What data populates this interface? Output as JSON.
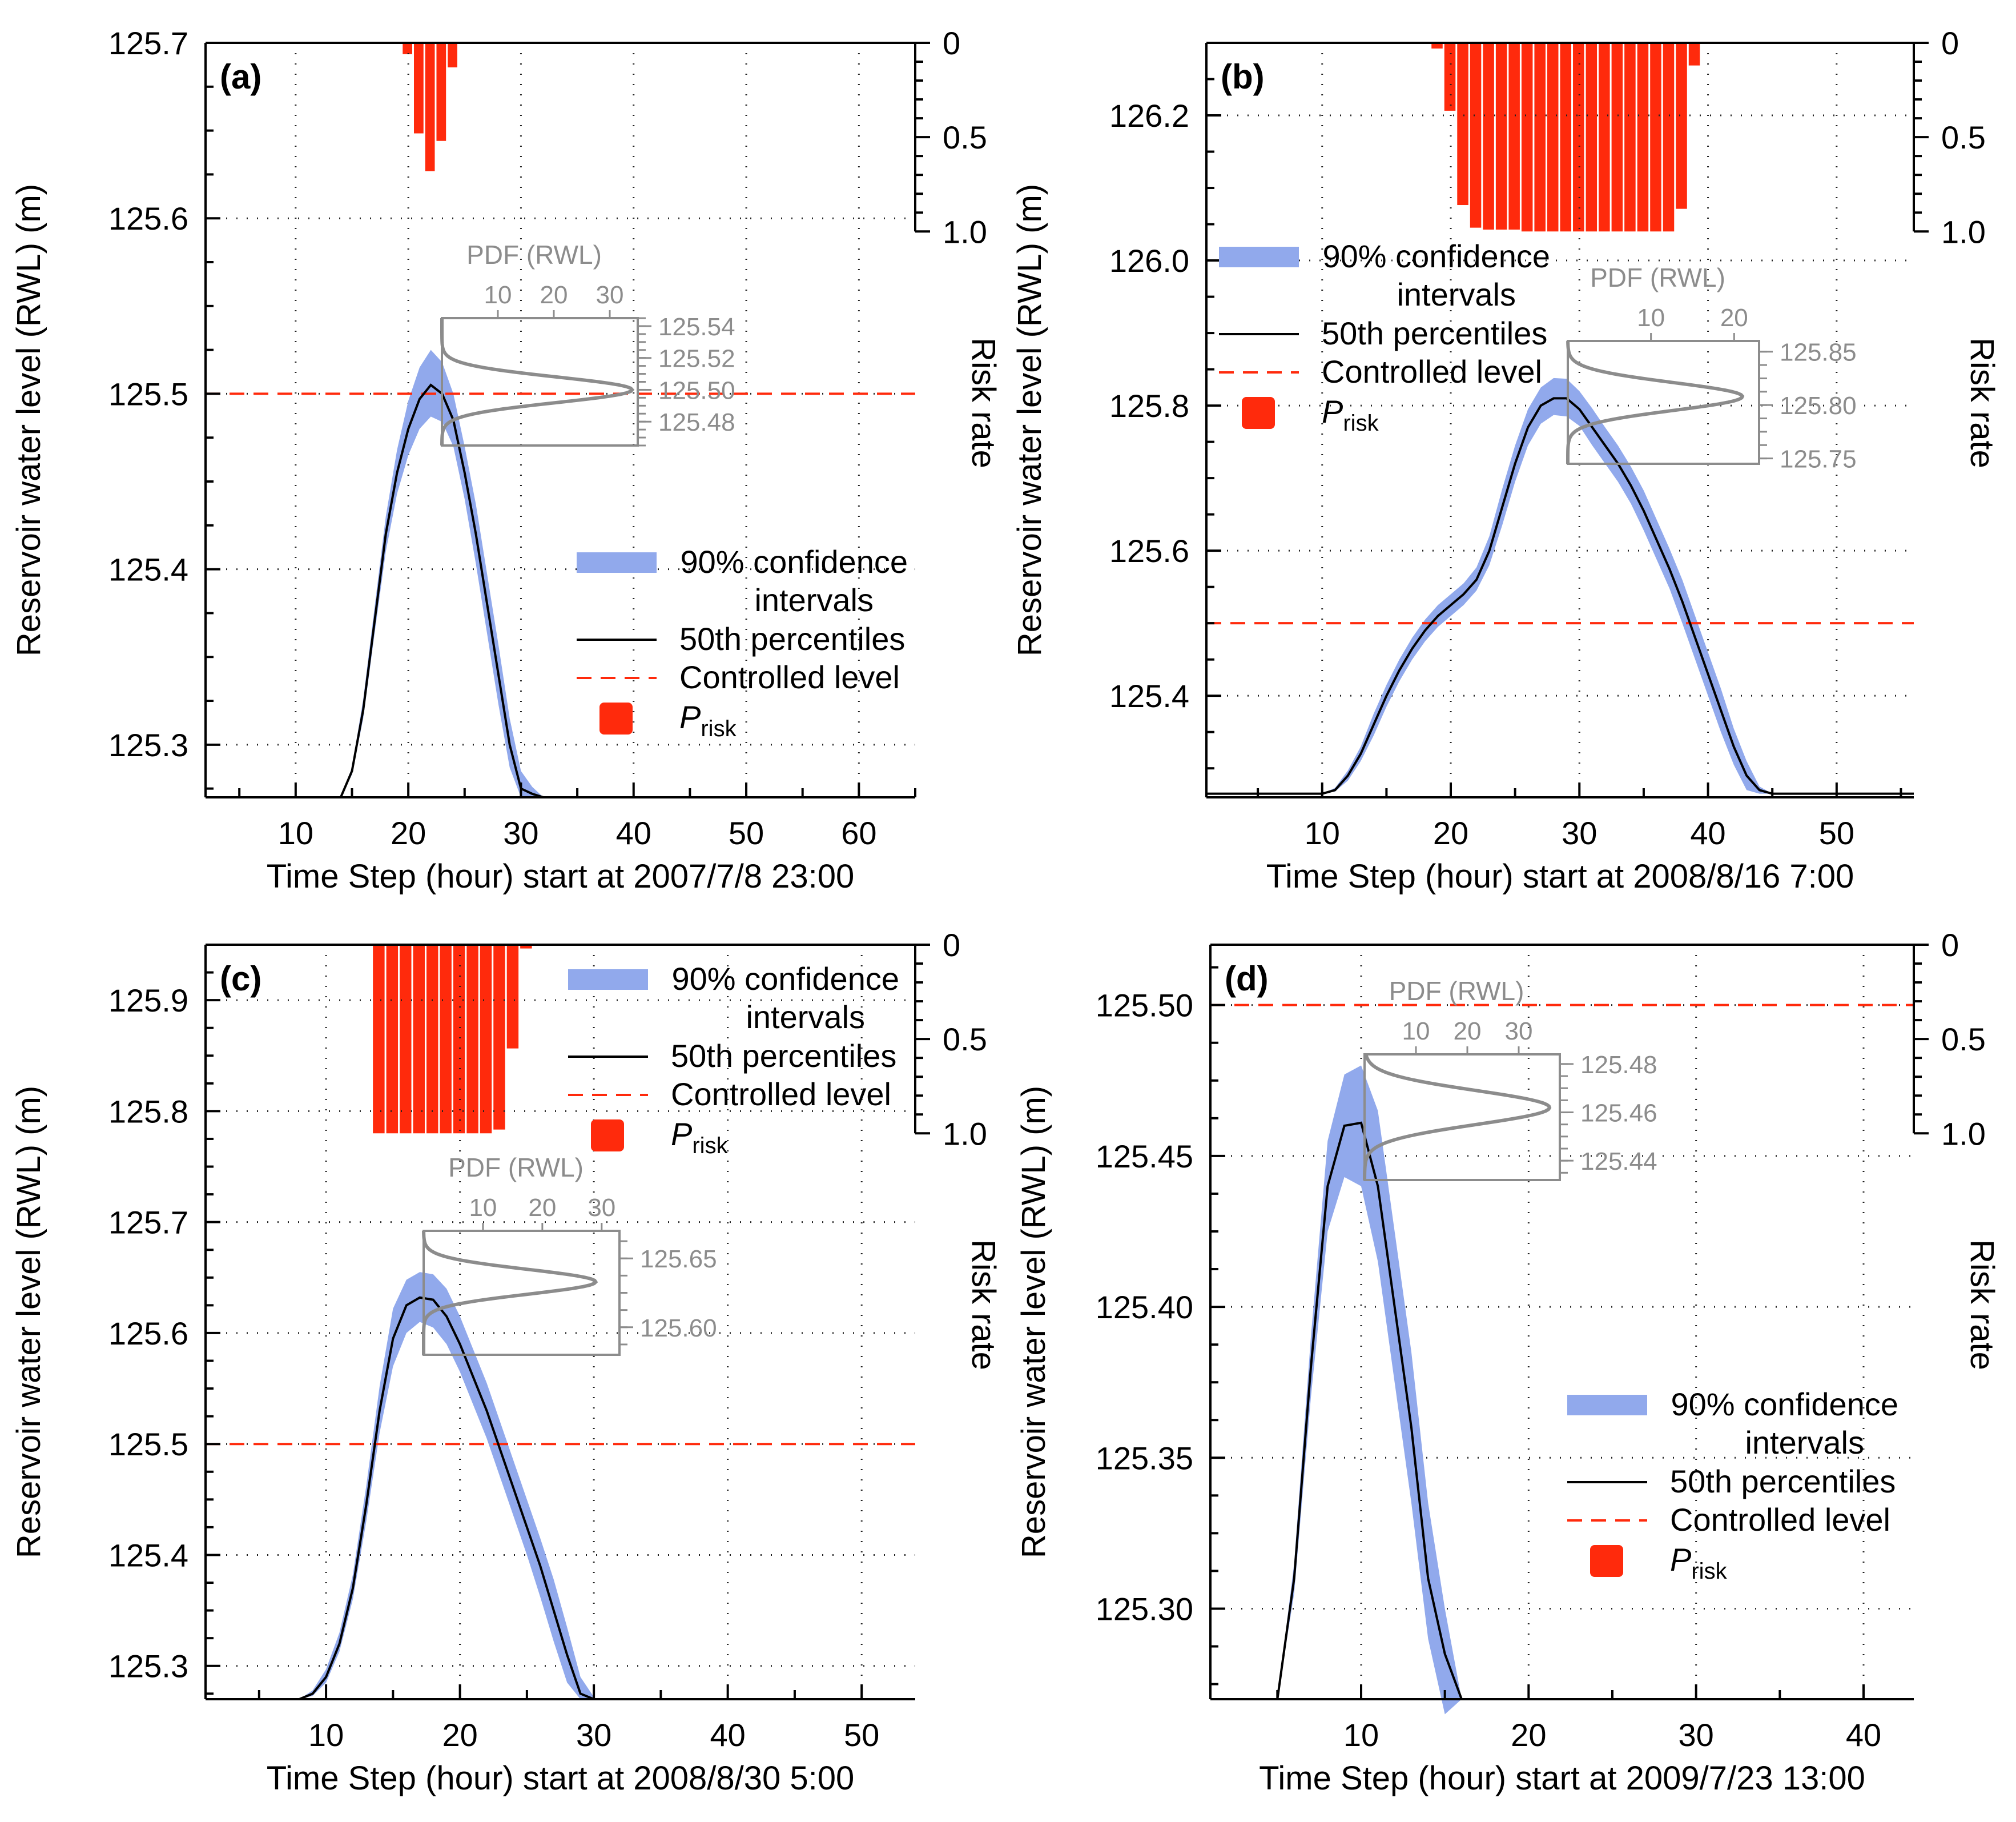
{
  "colors": {
    "band": "#91a9ec",
    "median": "#000000",
    "controlled": "#ff2a0c",
    "risk": "#ff2a0c",
    "pdf": "#8c8c8c",
    "grid": "#222222"
  },
  "common": {
    "ylabel": "Reservoir water level (RWL) (m)",
    "y2label": "Risk rate",
    "risk_ticks": [
      "0",
      "0.5",
      "1.0"
    ],
    "pdf_title": "PDF (RWL)",
    "legend": {
      "band_line1": "90% confidence",
      "band_line2": "intervals",
      "median": "50th percentiles",
      "controlled": "Controlled level",
      "risk_main": "P",
      "risk_sub": "risk"
    }
  },
  "chart_data": [
    {
      "type": "line",
      "panel_label": "(a)",
      "xlabel": "Time Step (hour) start at 2007/7/8 23:00",
      "xlim": [
        2,
        65
      ],
      "xticks": [
        10,
        20,
        30,
        40,
        50,
        60
      ],
      "xtick_labels": [
        "10",
        "20",
        "30",
        "40",
        "50",
        "60"
      ],
      "ylim": [
        125.27,
        125.7
      ],
      "yticks": [
        125.3,
        125.4,
        125.5,
        125.6,
        125.7
      ],
      "ytick_labels": [
        "125.3",
        "125.4",
        "125.5",
        "125.6",
        "125.7"
      ],
      "controlled_level": 125.5,
      "median": {
        "x": [
          2,
          14,
          15,
          16,
          17,
          18,
          19,
          20,
          21,
          22,
          23,
          24,
          25,
          26,
          27,
          28,
          29,
          30,
          31,
          32,
          65
        ],
        "y": [
          125.27,
          125.27,
          125.285,
          125.32,
          125.37,
          125.42,
          125.455,
          125.48,
          125.497,
          125.505,
          125.5,
          125.485,
          125.455,
          125.42,
          125.38,
          125.34,
          125.3,
          125.275,
          125.272,
          125.27,
          125.27
        ]
      },
      "band": {
        "x": [
          14,
          15,
          16,
          17,
          18,
          19,
          20,
          21,
          22,
          23,
          24,
          25,
          26,
          27,
          28,
          29,
          30,
          31,
          32
        ],
        "lower": [
          125.27,
          125.283,
          125.315,
          125.363,
          125.41,
          125.443,
          125.465,
          125.48,
          125.487,
          125.484,
          125.47,
          125.44,
          125.403,
          125.363,
          125.323,
          125.287,
          125.27,
          125.27,
          125.27
        ],
        "upper": [
          125.27,
          125.287,
          125.326,
          125.378,
          125.43,
          125.468,
          125.496,
          125.515,
          125.525,
          125.518,
          125.5,
          125.47,
          125.437,
          125.397,
          125.357,
          125.315,
          125.285,
          125.276,
          125.27
        ]
      },
      "risk": {
        "x": [
          20,
          21,
          22,
          23,
          24
        ],
        "values": [
          0.06,
          0.48,
          0.68,
          0.52,
          0.13
        ]
      },
      "pdf_inset": {
        "pdf_xticks": [
          "10",
          "20",
          "30"
        ],
        "pdf_xvals": [
          10,
          20,
          30
        ],
        "pdf_xmax": 35,
        "rwl_ticks": [
          "125.54",
          "125.52",
          "125.50",
          "125.48"
        ],
        "rwl_vals": [
          125.54,
          125.52,
          125.5,
          125.48
        ],
        "rwl_range": [
          125.465,
          125.545
        ],
        "mean": 125.5,
        "sd": 0.008,
        "peak": 34
      },
      "legend_position": "lower-right",
      "pdf_position": "center"
    },
    {
      "type": "line",
      "panel_label": "(b)",
      "xlabel": "Time Step (hour) start at 2008/8/16 7:00",
      "xlim": [
        1,
        56
      ],
      "xticks": [
        10,
        20,
        30,
        40,
        50
      ],
      "xtick_labels": [
        "10",
        "20",
        "30",
        "40",
        "50"
      ],
      "ylim": [
        125.26,
        126.3
      ],
      "yticks": [
        125.4,
        125.6,
        125.8,
        126.0,
        126.2
      ],
      "ytick_labels": [
        "125.4",
        "125.6",
        "125.8",
        "126.0",
        "126.2"
      ],
      "controlled_level": 125.5,
      "median": {
        "x": [
          1,
          10,
          11,
          12,
          13,
          14,
          15,
          16,
          17,
          18,
          19,
          20,
          21,
          22,
          23,
          24,
          25,
          26,
          27,
          28,
          29,
          30,
          31,
          32,
          33,
          34,
          35,
          36,
          37,
          38,
          39,
          40,
          41,
          42,
          43,
          44,
          45,
          56
        ],
        "y": [
          125.265,
          125.265,
          125.27,
          125.29,
          125.32,
          125.36,
          125.4,
          125.435,
          125.465,
          125.49,
          125.51,
          125.525,
          125.54,
          125.56,
          125.6,
          125.66,
          125.72,
          125.77,
          125.8,
          125.81,
          125.81,
          125.795,
          125.77,
          125.745,
          125.72,
          125.69,
          125.655,
          125.615,
          125.575,
          125.53,
          125.48,
          125.43,
          125.38,
          125.33,
          125.29,
          125.27,
          125.265,
          125.265
        ]
      },
      "band": {
        "x": [
          10,
          11,
          12,
          13,
          14,
          15,
          16,
          17,
          18,
          19,
          20,
          21,
          22,
          23,
          24,
          25,
          26,
          27,
          28,
          29,
          30,
          31,
          32,
          33,
          34,
          35,
          36,
          37,
          38,
          39,
          40,
          41,
          42,
          43,
          44,
          45
        ],
        "lower": [
          125.265,
          125.268,
          125.283,
          125.31,
          125.345,
          125.385,
          125.42,
          125.45,
          125.475,
          125.495,
          125.51,
          125.525,
          125.545,
          125.58,
          125.635,
          125.695,
          125.745,
          125.775,
          125.787,
          125.785,
          125.772,
          125.745,
          125.72,
          125.695,
          125.665,
          125.628,
          125.588,
          125.548,
          125.5,
          125.45,
          125.4,
          125.35,
          125.305,
          125.27,
          125.265,
          125.265
        ],
        "upper": [
          125.265,
          125.273,
          125.297,
          125.33,
          125.375,
          125.415,
          125.45,
          125.48,
          125.505,
          125.525,
          125.54,
          125.555,
          125.577,
          125.62,
          125.685,
          125.745,
          125.795,
          125.825,
          125.838,
          125.837,
          125.82,
          125.796,
          125.77,
          125.745,
          125.716,
          125.683,
          125.643,
          125.603,
          125.56,
          125.51,
          125.46,
          125.41,
          125.355,
          125.31,
          125.275,
          125.265
        ]
      },
      "risk": {
        "x": [
          19,
          20,
          21,
          22,
          23,
          24,
          25,
          26,
          27,
          28,
          29,
          30,
          31,
          32,
          33,
          34,
          35,
          36,
          37,
          38,
          39,
          40
        ],
        "values": [
          0.03,
          0.36,
          0.86,
          0.98,
          0.99,
          0.99,
          0.99,
          1.0,
          1.0,
          1.0,
          1.0,
          1.0,
          1.0,
          1.0,
          1.0,
          1.0,
          1.0,
          1.0,
          1.0,
          0.88,
          0.12,
          0.0
        ]
      },
      "pdf_inset": {
        "pdf_xticks": [
          "10",
          "20"
        ],
        "pdf_xvals": [
          10,
          20
        ],
        "pdf_xmax": 23,
        "rwl_ticks": [
          "125.85",
          "125.80",
          "125.75"
        ],
        "rwl_vals": [
          125.85,
          125.8,
          125.75
        ],
        "rwl_range": [
          125.745,
          125.86
        ],
        "mean": 125.808,
        "sd": 0.013,
        "peak": 21
      },
      "legend_position": "upper-left",
      "pdf_position": "upper-right"
    },
    {
      "type": "line",
      "panel_label": "(c)",
      "xlabel": "Time Step (hour) start at 2008/8/30 5:00",
      "xlim": [
        1,
        54
      ],
      "xticks": [
        10,
        20,
        30,
        40,
        50
      ],
      "xtick_labels": [
        "10",
        "20",
        "30",
        "40",
        "50"
      ],
      "ylim": [
        125.27,
        125.95
      ],
      "yticks": [
        125.3,
        125.4,
        125.5,
        125.6,
        125.7,
        125.8,
        125.9
      ],
      "ytick_labels": [
        "125.3",
        "125.4",
        "125.5",
        "125.6",
        "125.7",
        "125.8",
        "125.9"
      ],
      "controlled_level": 125.5,
      "median": {
        "x": [
          1,
          8,
          9,
          10,
          11,
          12,
          13,
          14,
          15,
          16,
          17,
          18,
          19,
          20,
          21,
          22,
          23,
          24,
          25,
          26,
          27,
          28,
          29,
          30,
          31,
          54
        ],
        "y": [
          125.27,
          125.27,
          125.275,
          125.29,
          125.32,
          125.37,
          125.445,
          125.53,
          125.595,
          125.625,
          125.632,
          125.63,
          125.615,
          125.59,
          125.56,
          125.53,
          125.495,
          125.46,
          125.425,
          125.39,
          125.35,
          125.31,
          125.275,
          125.27,
          125.27,
          125.27
        ]
      },
      "band": {
        "x": [
          8,
          9,
          10,
          11,
          12,
          13,
          14,
          15,
          16,
          17,
          18,
          19,
          20,
          21,
          22,
          23,
          24,
          25,
          26,
          27,
          28,
          29,
          30
        ],
        "lower": [
          125.27,
          125.273,
          125.285,
          125.313,
          125.36,
          125.43,
          125.51,
          125.57,
          125.6,
          125.61,
          125.605,
          125.59,
          125.565,
          125.535,
          125.505,
          125.47,
          125.435,
          125.4,
          125.362,
          125.322,
          125.285,
          125.27,
          125.27
        ],
        "upper": [
          125.27,
          125.278,
          125.297,
          125.33,
          125.382,
          125.462,
          125.552,
          125.622,
          125.648,
          125.655,
          125.653,
          125.64,
          125.615,
          125.585,
          125.555,
          125.52,
          125.485,
          125.45,
          125.415,
          125.378,
          125.335,
          125.29,
          125.272
        ]
      },
      "risk": {
        "x": [
          14,
          15,
          16,
          17,
          18,
          19,
          20,
          21,
          22,
          23,
          24,
          25
        ],
        "values": [
          1.0,
          1.0,
          1.0,
          1.0,
          1.0,
          1.0,
          1.0,
          1.0,
          1.0,
          0.98,
          0.55,
          0.02
        ]
      },
      "pdf_inset": {
        "pdf_xticks": [
          "10",
          "20",
          "30"
        ],
        "pdf_xvals": [
          10,
          20,
          30
        ],
        "pdf_xmax": 33,
        "rwl_ticks": [
          "125.65",
          "125.60"
        ],
        "rwl_vals": [
          125.65,
          125.6
        ],
        "rwl_range": [
          125.58,
          125.67
        ],
        "mean": 125.633,
        "sd": 0.009,
        "peak": 29
      },
      "legend_position": "upper-right",
      "pdf_position": "center"
    },
    {
      "type": "line",
      "panel_label": "(d)",
      "xlabel": "Time Step (hour) start at 2009/7/23 13:00",
      "xlim": [
        1,
        43
      ],
      "xticks": [
        10,
        20,
        30,
        40
      ],
      "xtick_labels": [
        "10",
        "20",
        "30",
        "40"
      ],
      "ylim": [
        125.27,
        125.52
      ],
      "yticks": [
        125.3,
        125.35,
        125.4,
        125.45,
        125.5
      ],
      "ytick_labels": [
        "125.30",
        "125.35",
        "125.40",
        "125.45",
        "125.50"
      ],
      "controlled_level": 125.5,
      "median": {
        "x": [
          1,
          5,
          6,
          7,
          8,
          9,
          10,
          11,
          12,
          13,
          14,
          15,
          16,
          43
        ],
        "y": [
          125.27,
          125.27,
          125.31,
          125.38,
          125.44,
          125.46,
          125.461,
          125.44,
          125.4,
          125.36,
          125.31,
          125.285,
          125.27,
          125.27
        ]
      },
      "band": {
        "x": [
          5,
          6,
          7,
          8,
          9,
          10,
          11,
          12,
          13,
          14,
          15,
          16
        ],
        "lower": [
          125.27,
          125.305,
          125.37,
          125.425,
          125.443,
          125.44,
          125.415,
          125.375,
          125.335,
          125.29,
          125.265,
          125.27
        ],
        "upper": [
          125.27,
          125.315,
          125.39,
          125.455,
          125.477,
          125.48,
          125.465,
          125.425,
          125.385,
          125.335,
          125.3,
          125.27
        ]
      },
      "risk": {
        "x": [],
        "values": []
      },
      "pdf_inset": {
        "pdf_xticks": [
          "10",
          "20",
          "30"
        ],
        "pdf_xvals": [
          10,
          20,
          30
        ],
        "pdf_xmax": 38,
        "rwl_ticks": [
          "125.48",
          "125.46",
          "125.44"
        ],
        "rwl_vals": [
          125.48,
          125.46,
          125.44
        ],
        "rwl_range": [
          125.432,
          125.484
        ],
        "mean": 125.462,
        "sd": 0.007,
        "peak": 36
      },
      "legend_position": "lower-right",
      "pdf_position": "upper-center"
    }
  ]
}
